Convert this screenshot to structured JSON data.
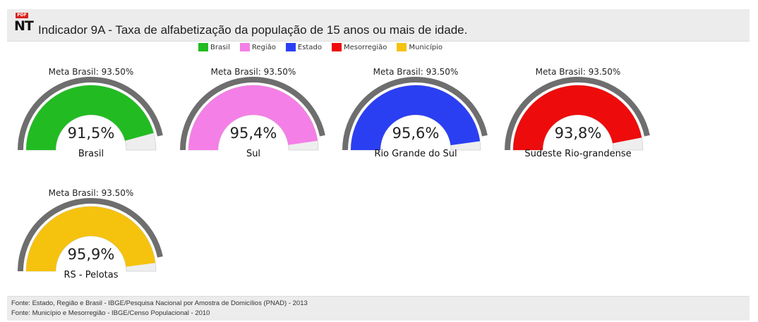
{
  "header": {
    "pdf_badge": "PDF",
    "nt_label": "NT",
    "title": "Indicador 9A - Taxa de alfabetização da população de 15 anos ou mais de idade."
  },
  "chart_data": {
    "type": "gauge",
    "range": [
      0,
      100
    ],
    "legend": [
      {
        "label": "Brasil",
        "color": "#22bb22"
      },
      {
        "label": "Região",
        "color": "#f47fe6"
      },
      {
        "label": "Estado",
        "color": "#2b3ff2"
      },
      {
        "label": "Mesorregião",
        "color": "#ee0b0b"
      },
      {
        "label": "Município",
        "color": "#f5c20e"
      }
    ],
    "gauges": [
      {
        "target_text": "Meta Brasil: 93.50%",
        "target": 93.5,
        "value": 91.5,
        "value_text": "91,5%",
        "name": "Brasil",
        "color": "#22bb22"
      },
      {
        "target_text": "Meta Brasil: 93.50%",
        "target": 93.5,
        "value": 95.4,
        "value_text": "95,4%",
        "name": "Sul",
        "color": "#f47fe6"
      },
      {
        "target_text": "Meta Brasil: 93.50%",
        "target": 93.5,
        "value": 95.6,
        "value_text": "95,6%",
        "name": "Rio Grande do Sul",
        "color": "#2b3ff2"
      },
      {
        "target_text": "Meta Brasil: 93.50%",
        "target": 93.5,
        "value": 93.8,
        "value_text": "93,8%",
        "name": "Sudeste Rio-grandense",
        "color": "#ee0b0b"
      },
      {
        "target_text": "Meta Brasil: 93.50%",
        "target": 93.5,
        "value": 95.9,
        "value_text": "95,9%",
        "name": "RS - Pelotas",
        "color": "#f5c20e"
      }
    ]
  },
  "footer": {
    "line1": "Fonte: Estado, Região e Brasil - IBGE/Pesquisa Nacional por Amostra de Domicílios (PNAD) - 2013",
    "line2": "Fonte: Município e Mesorregião - IBGE/Censo Populacional - 2010"
  }
}
